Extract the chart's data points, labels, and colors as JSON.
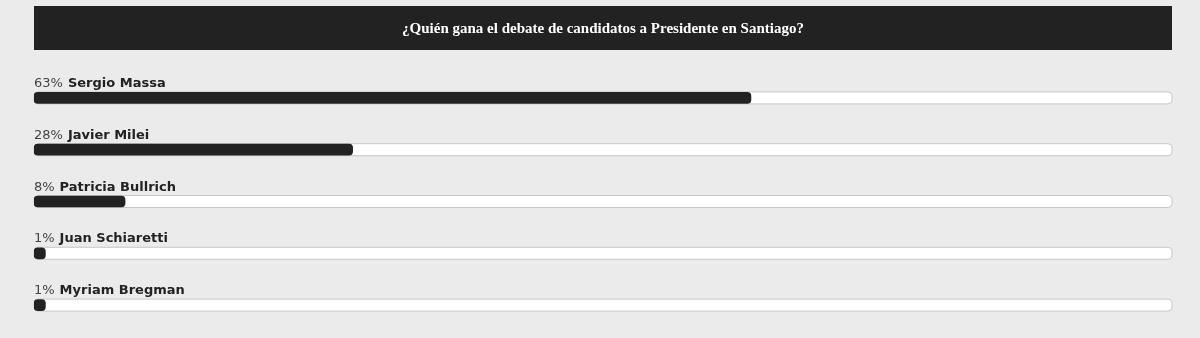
{
  "chart_data": {
    "type": "bar",
    "orientation": "horizontal",
    "title": "¿Quién gana el debate de candidatos a Presidente en Santiago?",
    "categories": [
      "Sergio Massa",
      "Javier Milei",
      "Patricia Bullrich",
      "Juan Schiaretti",
      "Myriam Bregman"
    ],
    "values": [
      63,
      28,
      8,
      1,
      1
    ],
    "value_labels": [
      "63%",
      "28%",
      "8%",
      "1%",
      "1%"
    ],
    "color": "#222222",
    "xlim": [
      0,
      100
    ]
  }
}
